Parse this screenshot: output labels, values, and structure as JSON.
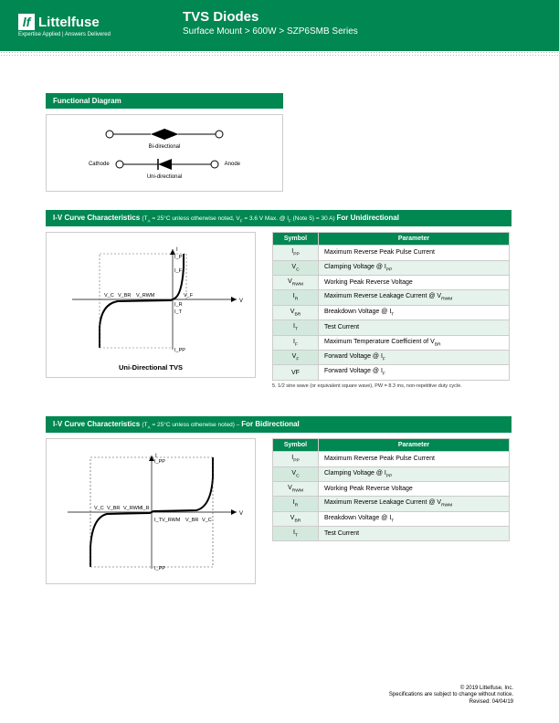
{
  "header": {
    "logo_text": "Littelfuse",
    "logo_tag": "Expertise Applied | Answers Delivered",
    "title": "TVS Diodes",
    "breadcrumb": "Surface Mount > 600W > SZP6SMB Series"
  },
  "sections": {
    "functional": {
      "title": "Functional Diagram",
      "bi_label": "Bi-directional",
      "cathode": "Cathode",
      "anode": "Anode",
      "uni_label": "Uni-directional"
    },
    "iv_uni": {
      "title": "I-V Curve Characteristics",
      "cond": " (T_A = 25°C unless otherwise noted, V_F = 3.6 V Max. @ I_F (Note 5) = 30 A) ",
      "suffix": "For Unidirectional",
      "caption": "Uni-Directional TVS",
      "table": {
        "head_symbol": "Symbol",
        "head_param": "Parameter",
        "rows": [
          {
            "sym": "I_PP",
            "param": "Maximum Reverse Peak Pulse Current"
          },
          {
            "sym": "V_C",
            "param": "Clamping Voltage @ I_PP"
          },
          {
            "sym": "V_RWM",
            "param": "Working Peak Reverse Voltage"
          },
          {
            "sym": "I_R",
            "param": "Maximum Reverse Leakage Current @ V_RWM"
          },
          {
            "sym": "V_BR",
            "param": "Breakdown Voltage @ I_T"
          },
          {
            "sym": "I_T",
            "param": "Test Current"
          },
          {
            "sym": "I_F",
            "param": "Maximum Temperature Coefficient of V_BR"
          },
          {
            "sym": "V_F",
            "param": "Forward Voltage @ I_F"
          },
          {
            "sym": "VF",
            "param": "Forward Voltage @ I_F"
          }
        ]
      },
      "footnote": "5. 1/2 sine wave (or equivalent square wave), PW = 8.3 ms, non-repetitive duty cycle."
    },
    "iv_bi": {
      "title": "I-V Curve Characteristics",
      "cond": " (T_A = 25°C unless otherwise noted) – ",
      "suffix": "For Bidirectional",
      "table": {
        "head_symbol": "Symbol",
        "head_param": "Parameter",
        "rows": [
          {
            "sym": "I_PP",
            "param": "Maximum Reverse Peak Pulse Current"
          },
          {
            "sym": "V_C",
            "param": "Clamping Voltage @ I_PP"
          },
          {
            "sym": "V_RWM",
            "param": "Working Peak Reverse Voltage"
          },
          {
            "sym": "I_R",
            "param": "Maximum Reverse Leakage Current @ V_RWM"
          },
          {
            "sym": "V_BR",
            "param": "Breakdown Voltage @ I_T"
          },
          {
            "sym": "I_T",
            "param": "Test Current"
          }
        ]
      }
    }
  },
  "curves": {
    "uni": {
      "stroke": "#000000",
      "dash": "#666666",
      "labels": [
        "I_P",
        "I_T",
        "I_R",
        "I_F",
        "I_PP",
        "V_C",
        "V_BR",
        "V_RWM",
        "V_F",
        "V",
        "I"
      ]
    },
    "bi": {
      "stroke": "#000000",
      "dash": "#444444",
      "labels": [
        "I_PP",
        "V_C",
        "V_BR",
        "V_RWM",
        "I_R",
        "I_T",
        "V",
        "I"
      ]
    }
  },
  "footer": {
    "copyright": "© 2019 Littelfuse, Inc.",
    "notice": "Specifications are subject to change without notice.",
    "revised": "Revised: 04/04/19"
  },
  "colors": {
    "brand": "#008752",
    "row_alt": "#e6f2ec"
  }
}
